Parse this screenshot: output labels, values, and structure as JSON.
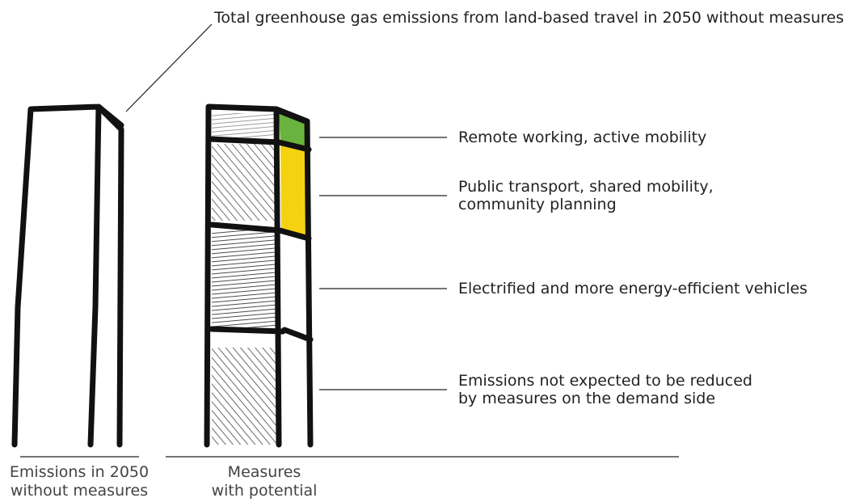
{
  "annotation": "Total greenhouse gas emissions from land-based travel in 2050 without measures",
  "segments": [
    {
      "lines": [
        "Remote working, active mobility"
      ]
    },
    {
      "lines": [
        "Public transport, shared mobility,",
        "community planning"
      ]
    },
    {
      "lines": [
        "Electrified and more energy-efficient vehicles"
      ]
    },
    {
      "lines": [
        "Emissions not expected to be reduced",
        "by measures on the demand side"
      ]
    }
  ],
  "bars": [
    {
      "lines": [
        "Emissions in 2050",
        "without measures"
      ]
    },
    {
      "lines": [
        "Measures",
        "with potential"
      ]
    }
  ]
}
